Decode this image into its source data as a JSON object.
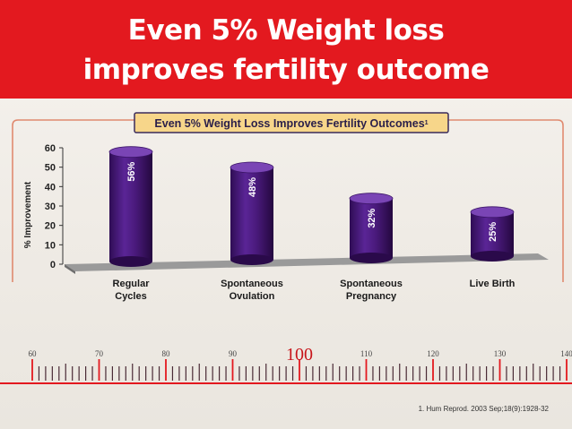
{
  "header": {
    "line1": "Even 5% Weight loss",
    "line2": "improves fertility outcome"
  },
  "colors": {
    "banner": "#e3191f",
    "bar": "#4a1a7c",
    "bar_top": "#6b35a6",
    "frame": "#e08a70",
    "title_box": "#f7d68a",
    "floor": "#9a9a9a"
  },
  "chart_data": {
    "type": "bar",
    "title": "Even 5% Weight Loss Improves Fertility Outcomes",
    "title_superscript": "1",
    "ylabel": "% Improvement",
    "xlabel": "",
    "ylim": [
      0,
      60
    ],
    "yticks": [
      0,
      10,
      20,
      30,
      40,
      50,
      60
    ],
    "categories": [
      [
        "Regular",
        "Cycles"
      ],
      [
        "Spontaneous",
        "Ovulation"
      ],
      [
        "Spontaneous",
        "Pregnancy"
      ],
      [
        "Live Birth"
      ]
    ],
    "values": [
      56,
      48,
      32,
      25
    ],
    "value_labels": [
      "56%",
      "48%",
      "32%",
      "25%"
    ],
    "grid": false,
    "legend": "none"
  },
  "ruler": {
    "labels": [
      "60",
      "70",
      "80",
      "90",
      "100",
      "110",
      "120",
      "130",
      "140"
    ],
    "highlight": "100"
  },
  "citation": "1. Hum Reprod. 2003 Sep;18(9):1928-32"
}
